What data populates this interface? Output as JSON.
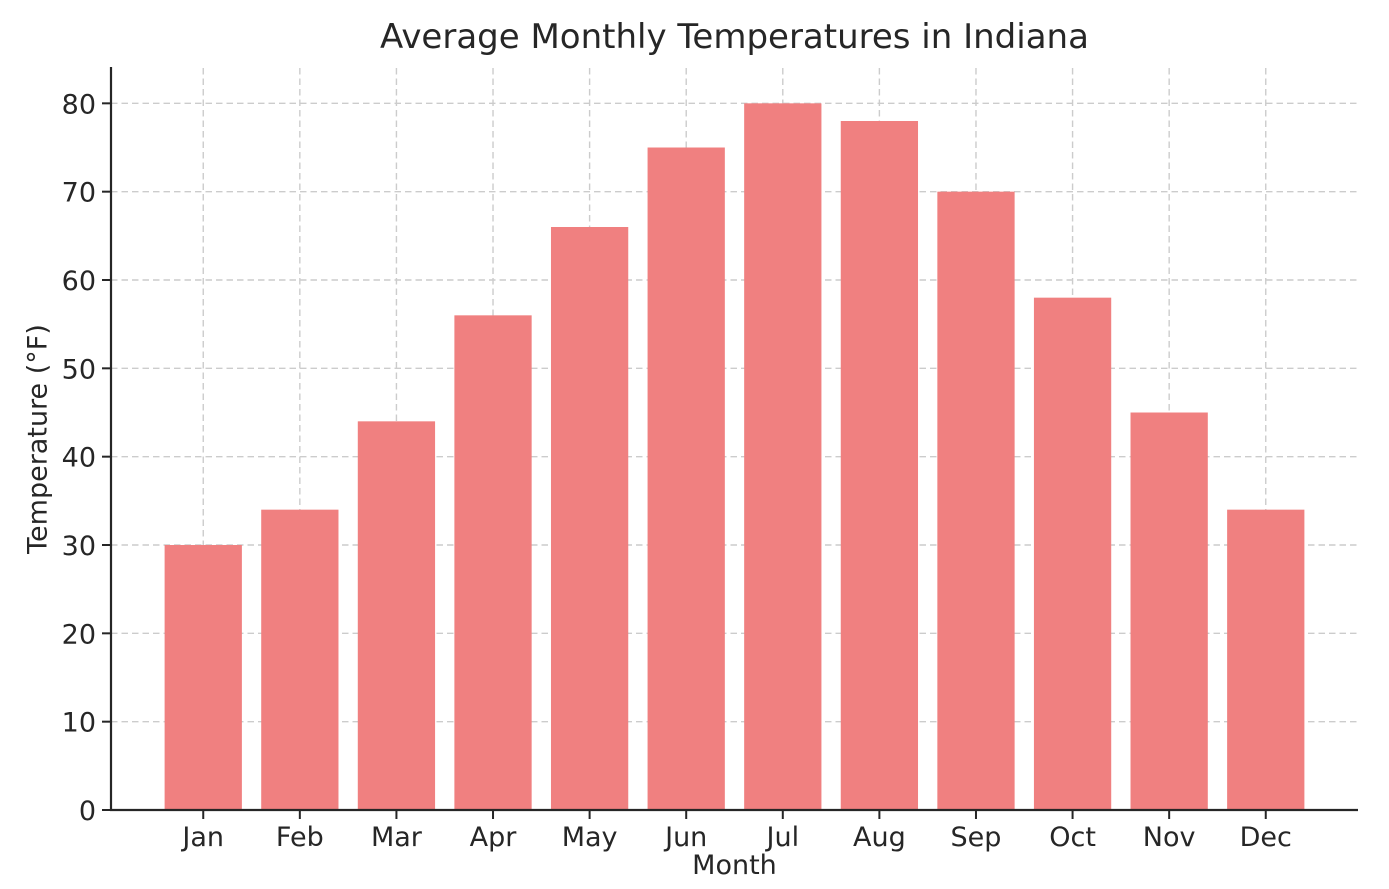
{
  "chart_data": {
    "type": "bar",
    "title": "Average Monthly Temperatures in Indiana",
    "xlabel": "Month",
    "ylabel": "Temperature (°F)",
    "categories": [
      "Jan",
      "Feb",
      "Mar",
      "Apr",
      "May",
      "Jun",
      "Jul",
      "Aug",
      "Sep",
      "Oct",
      "Nov",
      "Dec"
    ],
    "values": [
      30,
      34,
      44,
      56,
      66,
      75,
      80,
      78,
      70,
      58,
      45,
      34
    ],
    "yticks": [
      0,
      10,
      20,
      30,
      40,
      50,
      60,
      70,
      80
    ],
    "ylim": [
      0,
      84
    ],
    "bar_color": "#F08080",
    "grid": {
      "visible": true,
      "style": "dashed",
      "color": "#cccccc"
    },
    "axis_color": "#262626",
    "text_color": "#262626",
    "background": "#ffffff",
    "legend": "none"
  }
}
